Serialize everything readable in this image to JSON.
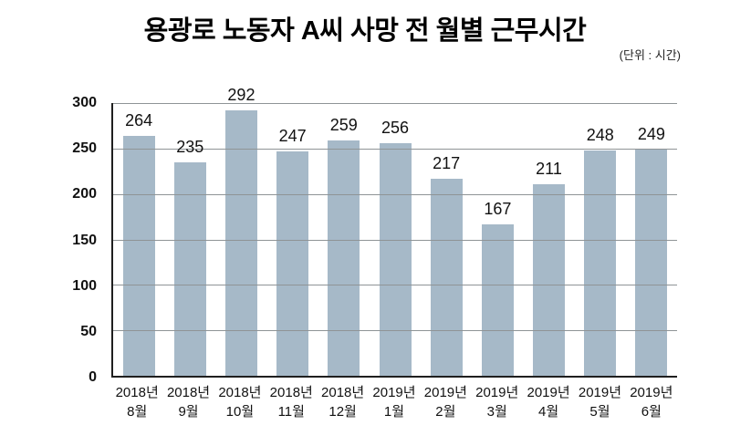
{
  "chart": {
    "title": "용광로 노동자 A씨 사망 전 월별 근무시간",
    "unit_label": "(단위 : 시간)"
  },
  "chart_data": {
    "type": "bar",
    "title": "용광로 노동자 A씨 사망 전 월별 근무시간",
    "subtitle": "(단위 : 시간)",
    "categories": [
      "2018년 8월",
      "2018년 9월",
      "2018년 10월",
      "2018년 11월",
      "2018년 12월",
      "2019년 1월",
      "2019년 2월",
      "2019년 3월",
      "2019년 4월",
      "2019년 5월",
      "2019년 6월"
    ],
    "values": [
      264,
      235,
      292,
      247,
      259,
      256,
      217,
      167,
      211,
      248,
      249
    ],
    "xlabel": "",
    "ylabel": "",
    "ylim": [
      0,
      300
    ],
    "yticks": [
      0,
      50,
      100,
      150,
      200,
      250,
      300
    ],
    "grid": true,
    "legend": "none",
    "colors": {
      "bar_fill": "#a6b9c8",
      "gridline": "#8f9496",
      "axis_line": "#1f1f1f",
      "text": "#111111"
    }
  }
}
